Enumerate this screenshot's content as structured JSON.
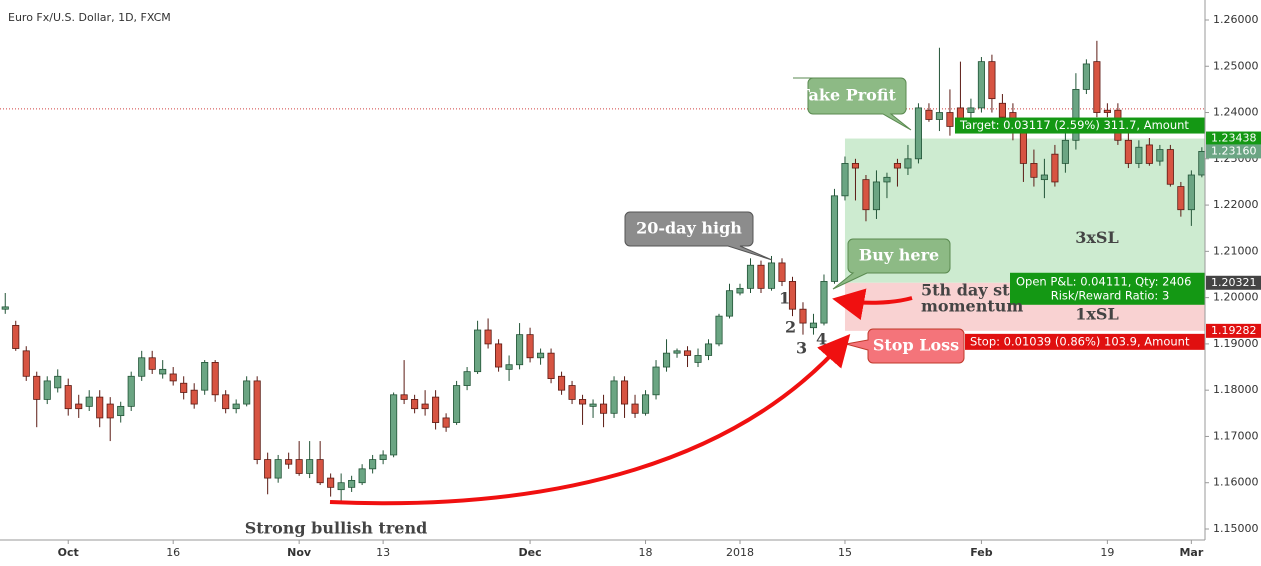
{
  "chart_data": {
    "type": "candlestick",
    "title": "Euro Fx/U.S. Dollar, 1D, FXCM",
    "up_color": "#6ba583",
    "up_border": "#225437",
    "down_color": "#d75442",
    "down_border": "#5b1a13",
    "open": [
      1.1975,
      1.194,
      1.1885,
      1.183,
      1.178,
      1.1805,
      1.181,
      1.177,
      1.1765,
      1.1785,
      1.177,
      1.1745,
      1.1765,
      1.183,
      1.187,
      1.1835,
      1.1835,
      1.1815,
      1.18,
      1.18,
      1.186,
      1.179,
      1.176,
      1.177,
      1.182,
      1.165,
      1.161,
      1.165,
      1.165,
      1.162,
      1.165,
      1.161,
      1.1585,
      1.159,
      1.16,
      1.163,
      1.165,
      1.166,
      1.179,
      1.178,
      1.177,
      1.1785,
      1.174,
      1.173,
      1.181,
      1.184,
      1.193,
      1.19,
      1.1845,
      1.1855,
      1.192,
      1.187,
      1.188,
      1.183,
      1.181,
      1.178,
      1.1765,
      1.177,
      1.175,
      1.182,
      1.177,
      1.175,
      1.179,
      1.185,
      1.188,
      1.1885,
      1.186,
      1.1875,
      1.19,
      1.196,
      1.201,
      1.202,
      1.207,
      1.202,
      1.2075,
      1.2035,
      1.1975,
      1.1935,
      1.1945,
      1.2035,
      1.222,
      1.229,
      1.2255,
      1.219,
      1.225,
      1.229,
      1.228,
      1.23,
      1.2405,
      1.2385,
      1.24,
      1.241,
      1.24,
      1.241,
      1.251,
      1.242,
      1.24,
      1.236,
      1.229,
      1.2255,
      1.231,
      1.229,
      1.234,
      1.245,
      1.251,
      1.2405,
      1.2405,
      1.234,
      1.229,
      1.233,
      1.2295,
      1.232,
      1.224,
      1.219,
      1.2265
    ],
    "high": [
      1.201,
      1.195,
      1.1895,
      1.184,
      1.183,
      1.1845,
      1.1825,
      1.179,
      1.18,
      1.18,
      1.1785,
      1.1775,
      1.184,
      1.1885,
      1.1885,
      1.1865,
      1.185,
      1.183,
      1.1815,
      1.1865,
      1.1865,
      1.18,
      1.178,
      1.183,
      1.183,
      1.1665,
      1.166,
      1.1665,
      1.169,
      1.169,
      1.169,
      1.162,
      1.162,
      1.1615,
      1.164,
      1.166,
      1.167,
      1.1795,
      1.1865,
      1.179,
      1.18,
      1.18,
      1.175,
      1.182,
      1.185,
      1.195,
      1.1955,
      1.191,
      1.1875,
      1.1945,
      1.1935,
      1.189,
      1.189,
      1.184,
      1.182,
      1.179,
      1.178,
      1.179,
      1.183,
      1.183,
      1.179,
      1.18,
      1.1865,
      1.191,
      1.189,
      1.1895,
      1.189,
      1.191,
      1.1965,
      1.203,
      1.203,
      1.2085,
      1.208,
      1.209,
      1.2085,
      1.2045,
      1.199,
      1.1965,
      1.205,
      1.2235,
      1.2305,
      1.23,
      1.2265,
      1.2275,
      1.227,
      1.23,
      1.233,
      1.242,
      1.242,
      1.254,
      1.245,
      1.251,
      1.243,
      1.252,
      1.2525,
      1.244,
      1.242,
      1.238,
      1.232,
      1.23,
      1.233,
      1.238,
      1.2485,
      1.2515,
      1.2555,
      1.242,
      1.242,
      1.2355,
      1.234,
      1.2345,
      1.233,
      1.233,
      1.225,
      1.2275,
      1.2325
    ],
    "low": [
      1.1965,
      1.1885,
      1.182,
      1.172,
      1.177,
      1.1795,
      1.1745,
      1.174,
      1.1755,
      1.172,
      1.169,
      1.173,
      1.1755,
      1.182,
      1.1835,
      1.1825,
      1.181,
      1.178,
      1.176,
      1.179,
      1.1775,
      1.175,
      1.175,
      1.1765,
      1.164,
      1.1575,
      1.16,
      1.163,
      1.1615,
      1.161,
      1.1595,
      1.157,
      1.1555,
      1.158,
      1.1595,
      1.162,
      1.164,
      1.1655,
      1.177,
      1.175,
      1.1745,
      1.1715,
      1.171,
      1.1725,
      1.18,
      1.1835,
      1.189,
      1.184,
      1.182,
      1.1845,
      1.186,
      1.1855,
      1.1815,
      1.179,
      1.177,
      1.1725,
      1.174,
      1.172,
      1.174,
      1.174,
      1.174,
      1.1745,
      1.178,
      1.184,
      1.187,
      1.185,
      1.185,
      1.1865,
      1.1895,
      1.1955,
      1.2005,
      1.201,
      1.201,
      1.2015,
      1.2025,
      1.196,
      1.192,
      1.192,
      1.194,
      1.203,
      1.221,
      1.221,
      1.2165,
      1.217,
      1.2215,
      1.224,
      1.2265,
      1.229,
      1.238,
      1.236,
      1.235,
      1.2375,
      1.2385,
      1.24,
      1.24,
      1.238,
      1.234,
      1.225,
      1.224,
      1.2215,
      1.224,
      1.227,
      1.232,
      1.244,
      1.239,
      1.239,
      1.233,
      1.228,
      1.228,
      1.2285,
      1.2285,
      1.224,
      1.2175,
      1.2155,
      1.226
    ],
    "close": [
      1.198,
      1.189,
      1.183,
      1.178,
      1.182,
      1.183,
      1.176,
      1.176,
      1.1785,
      1.174,
      1.174,
      1.1765,
      1.183,
      1.187,
      1.1845,
      1.1845,
      1.182,
      1.1795,
      1.177,
      1.186,
      1.179,
      1.176,
      1.177,
      1.182,
      1.165,
      1.161,
      1.165,
      1.164,
      1.162,
      1.165,
      1.16,
      1.159,
      1.16,
      1.1605,
      1.163,
      1.165,
      1.166,
      1.179,
      1.178,
      1.176,
      1.176,
      1.173,
      1.172,
      1.181,
      1.184,
      1.193,
      1.19,
      1.185,
      1.1855,
      1.192,
      1.187,
      1.188,
      1.1825,
      1.18,
      1.178,
      1.177,
      1.177,
      1.175,
      1.182,
      1.177,
      1.175,
      1.179,
      1.185,
      1.188,
      1.1885,
      1.1875,
      1.1875,
      1.19,
      1.196,
      1.2015,
      1.202,
      1.207,
      1.202,
      1.2075,
      1.2035,
      1.1975,
      1.1945,
      1.1945,
      1.2035,
      1.222,
      1.229,
      1.228,
      1.219,
      1.225,
      1.226,
      1.228,
      1.23,
      1.241,
      1.2385,
      1.24,
      1.237,
      1.2385,
      1.241,
      1.251,
      1.243,
      1.239,
      1.236,
      1.229,
      1.226,
      1.2265,
      1.225,
      1.234,
      1.245,
      1.2505,
      1.24,
      1.24,
      1.234,
      1.229,
      1.2325,
      1.229,
      1.232,
      1.2245,
      1.219,
      1.2265,
      1.2316
    ],
    "xlim": [
      -0.5,
      114.3
    ],
    "ylim": [
      1.14762,
      1.26432
    ],
    "xticks": [
      {
        "value": 6,
        "label": "Oct"
      },
      {
        "value": 16,
        "label": "16"
      },
      {
        "value": 28,
        "label": "Nov"
      },
      {
        "value": 36,
        "label": "13"
      },
      {
        "value": 50,
        "label": "Dec"
      },
      {
        "value": 61,
        "label": "18"
      },
      {
        "value": 70,
        "label": "2018"
      },
      {
        "value": 80,
        "label": "15"
      },
      {
        "value": 93,
        "label": "Feb"
      },
      {
        "value": 105,
        "label": "19"
      },
      {
        "value": 113,
        "label": "Mar"
      }
    ],
    "yticks": [
      {
        "value": 1.15,
        "label": "1.15000"
      },
      {
        "value": 1.16,
        "label": "1.16000"
      },
      {
        "value": 1.17,
        "label": "1.17000"
      },
      {
        "value": 1.18,
        "label": "1.18000"
      },
      {
        "value": 1.19,
        "label": "1.19000"
      },
      {
        "value": 1.2,
        "label": "1.20000"
      },
      {
        "value": 1.21,
        "label": "1.21000"
      },
      {
        "value": 1.22,
        "label": "1.22000"
      },
      {
        "value": 1.23,
        "label": "1.23000"
      },
      {
        "value": 1.24,
        "label": "1.24000"
      },
      {
        "value": 1.25,
        "label": "1.25000"
      },
      {
        "value": 1.26,
        "label": "1.26000"
      }
    ],
    "alert_line": 1.2408,
    "last_price": {
      "value": 1.2316,
      "label": "1.23160"
    },
    "position": {
      "start_index": 80,
      "target": 1.23438,
      "entry": 1.20321,
      "stop": 1.19282,
      "target_label": "Target: 0.03117 (2.59%) 311.7, Amount",
      "stop_label": "Stop: 0.01039 (0.86%) 103.9, Amount",
      "pnl_label": "Open P&L: 0.04111, Qty: 2406",
      "rr_label": "Risk/Reward Ratio: 3",
      "profit_zone": "3xSL",
      "loss_zone": "1xSL"
    },
    "annotations": [
      "Strong bullish trend",
      "20-day high",
      "Take Profit",
      "Buy here",
      "Stop Loss",
      "5th day st",
      "momentum",
      "1",
      "2",
      "3",
      "4"
    ]
  }
}
